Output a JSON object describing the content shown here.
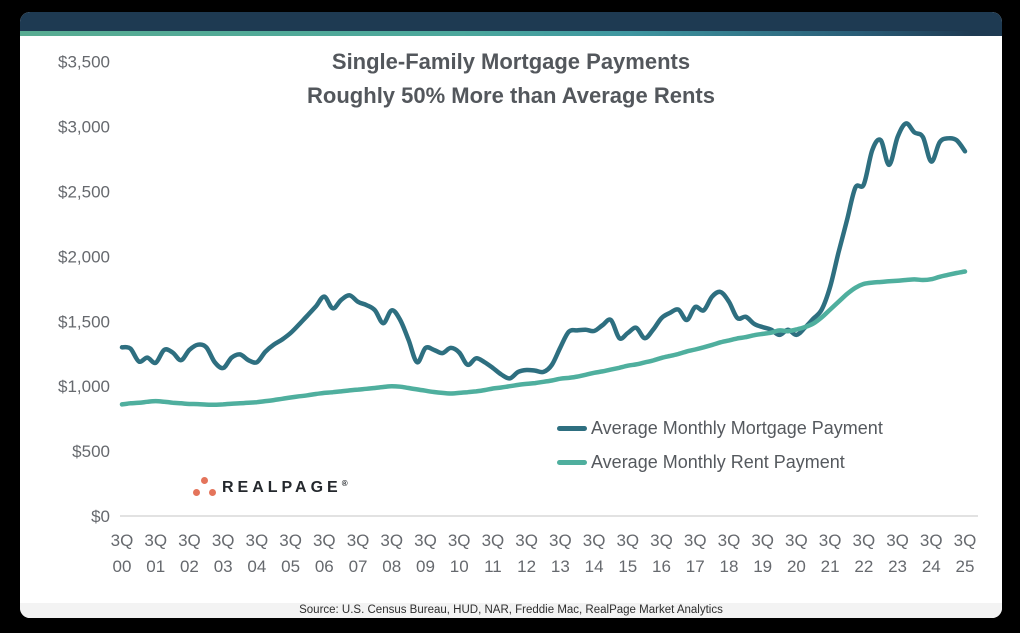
{
  "card": {
    "title_line1": "Single-Family Mortgage Payments",
    "title_line2": "Roughly 50% More than Average Rents",
    "source": "Source: U.S. Census Bureau, HUD, NAR, Freddie Mac, RealPage Market Analytics",
    "logo_text": "REALPAGE",
    "logo_reg": "®"
  },
  "colors": {
    "mortgage_line": "#2E6F80",
    "rent_line": "#4FAF9E",
    "header_bar": "#1E3A52",
    "stripe_green": "#58AC92",
    "stripe_teal": "#3E96A0",
    "accent_orange": "#E4745B",
    "axis_text": "#66696E",
    "axis_line": "#D8D8D8",
    "title_text": "#53575C",
    "legend_text": "#55595E"
  },
  "chart_data": {
    "type": "line",
    "title": "Single-Family Mortgage Payments Roughly 50% More than Average Rents",
    "x_frequency": "quarterly",
    "x_range": [
      "3Q 2000",
      "3Q 2025"
    ],
    "x_tick_labels": [
      "3Q 00",
      "3Q 01",
      "3Q 02",
      "3Q 03",
      "3Q 04",
      "3Q 05",
      "3Q 06",
      "3Q 07",
      "3Q 08",
      "3Q 09",
      "3Q 10",
      "3Q 11",
      "3Q 12",
      "3Q 13",
      "3Q 14",
      "3Q 15",
      "3Q 16",
      "3Q 17",
      "3Q 18",
      "3Q 19",
      "3Q 20",
      "3Q 21",
      "3Q 22",
      "3Q 23",
      "3Q 24",
      "3Q 25"
    ],
    "ylim": [
      0,
      3500
    ],
    "y_tick_step": 500,
    "y_tick_values": [
      0,
      500,
      1000,
      1500,
      2000,
      2500,
      3000,
      3500
    ],
    "y_tick_labels": [
      "$0",
      "$500",
      "$1,000",
      "$1,500",
      "$2,000",
      "$2,500",
      "$3,000",
      "$3,500"
    ],
    "grid": false,
    "legend_position": "middle-right",
    "series": [
      {
        "name": "Average Monthly Mortgage Payment",
        "color": "#2E6F80",
        "values": [
          1300,
          1290,
          1190,
          1220,
          1180,
          1280,
          1260,
          1200,
          1280,
          1320,
          1300,
          1185,
          1140,
          1220,
          1245,
          1200,
          1185,
          1265,
          1320,
          1360,
          1410,
          1475,
          1545,
          1615,
          1690,
          1600,
          1665,
          1700,
          1650,
          1625,
          1585,
          1485,
          1585,
          1510,
          1355,
          1185,
          1295,
          1280,
          1255,
          1295,
          1260,
          1165,
          1215,
          1185,
          1140,
          1090,
          1060,
          1110,
          1125,
          1120,
          1110,
          1165,
          1300,
          1420,
          1430,
          1435,
          1425,
          1470,
          1510,
          1370,
          1410,
          1450,
          1370,
          1435,
          1525,
          1565,
          1590,
          1510,
          1610,
          1585,
          1690,
          1726,
          1650,
          1525,
          1535,
          1480,
          1455,
          1435,
          1395,
          1435,
          1395,
          1450,
          1520,
          1590,
          1765,
          2030,
          2280,
          2530,
          2555,
          2820,
          2895,
          2705,
          2920,
          3025,
          2955,
          2920,
          2730,
          2880,
          2910,
          2895,
          2810
        ]
      },
      {
        "name": "Average Monthly Rent Payment",
        "color": "#4FAF9E",
        "values": [
          860,
          868,
          872,
          880,
          885,
          880,
          873,
          868,
          863,
          862,
          858,
          857,
          860,
          865,
          868,
          872,
          877,
          885,
          893,
          903,
          913,
          922,
          930,
          940,
          948,
          954,
          960,
          968,
          974,
          980,
          986,
          994,
          1000,
          996,
          986,
          975,
          965,
          955,
          948,
          944,
          948,
          954,
          960,
          970,
          982,
          990,
          1000,
          1010,
          1018,
          1024,
          1034,
          1044,
          1058,
          1064,
          1074,
          1088,
          1103,
          1114,
          1128,
          1142,
          1158,
          1168,
          1183,
          1198,
          1218,
          1233,
          1248,
          1268,
          1283,
          1300,
          1318,
          1338,
          1353,
          1368,
          1378,
          1393,
          1403,
          1412,
          1430,
          1424,
          1437,
          1455,
          1482,
          1530,
          1590,
          1650,
          1710,
          1758,
          1788,
          1798,
          1803,
          1808,
          1813,
          1818,
          1823,
          1818,
          1824,
          1843,
          1858,
          1872,
          1884
        ]
      }
    ]
  }
}
